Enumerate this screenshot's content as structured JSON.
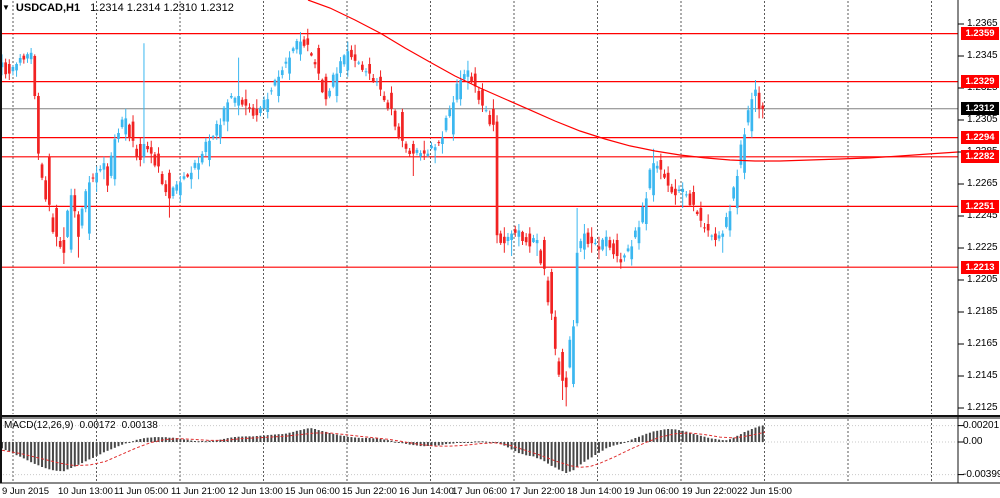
{
  "header": {
    "symbol_period": "USDCAD,H1",
    "ohlc_values": "1.2314 1.2314 1.2310 1.2312",
    "collapse_arrow": "▼"
  },
  "macd_panel": {
    "indicator_name": "MACD(12,26,9)",
    "main_value": "0.00172",
    "signal_value": "0.00138",
    "axis_labels": [
      "0.00201",
      "0.00",
      "-0.00399"
    ],
    "axis_values": [
      0.00201,
      0.0,
      -0.00399
    ]
  },
  "colors": {
    "bull": "#3BB7F0",
    "bear": "#F12222",
    "hline": "#FF0000",
    "hline_label_bg": "#FF0000",
    "current_label_bg": "#000000",
    "label_text": "#FFFFFF",
    "ma_line": "#FF0000",
    "grid": "#5A5A5A",
    "bid_line": "#808080",
    "macd_hist": "#474747",
    "macd_signal": "#E03030",
    "frame": "#111111"
  },
  "chart_data": {
    "type": "candlestick",
    "title": "USDCAD,H1",
    "price_axis_ticks": [
      1.2365,
      1.2345,
      1.2325,
      1.2305,
      1.2285,
      1.2265,
      1.2245,
      1.2225,
      1.2205,
      1.2185,
      1.2165,
      1.2145,
      1.2125
    ],
    "hlines": [
      {
        "price": 1.2359,
        "label": "1.2359"
      },
      {
        "price": 1.2329,
        "label": "1.2329"
      },
      {
        "price": 1.2294,
        "label": "1.2294"
      },
      {
        "price": 1.2282,
        "label": "1.2282"
      },
      {
        "price": 1.2251,
        "label": "1.2251"
      },
      {
        "price": 1.2213,
        "label": "1.2213"
      }
    ],
    "current_price": {
      "price": 1.2312,
      "label": "1.2312"
    },
    "time_labels": [
      "9 Jun 2015",
      "10 Jun 13:00",
      "11 Jun 05:00",
      "11 Jun 21:00",
      "12 Jun 13:00",
      "15 Jun 06:00",
      "15 Jun 22:00",
      "16 Jun 14:00",
      "17 Jun 06:00",
      "17 Jun 22:00",
      "18 Jun 14:00",
      "19 Jun 06:00",
      "19 Jun 22:00",
      "22 Jun 15:00"
    ],
    "candle_waypoints": [
      [
        2,
        1.2338,
        1.2346,
        1.2333,
        1.2341
      ],
      [
        10,
        1.234,
        1.2343,
        1.233,
        1.2334
      ],
      [
        18,
        1.2336,
        1.2341,
        1.2332,
        1.234
      ],
      [
        30,
        1.2343,
        1.235,
        1.234,
        1.2347
      ],
      [
        36,
        1.2345,
        1.2346,
        1.2318,
        1.232
      ],
      [
        40,
        1.232,
        1.2322,
        1.228,
        1.2284
      ],
      [
        48,
        1.2282,
        1.2284,
        1.2248,
        1.2252
      ],
      [
        56,
        1.225,
        1.2252,
        1.2226,
        1.2232
      ],
      [
        64,
        1.223,
        1.2238,
        1.2215,
        1.2222
      ],
      [
        70,
        1.2224,
        1.2262,
        1.2222,
        1.2258
      ],
      [
        74,
        1.2258,
        1.2262,
        1.2244,
        1.2248
      ],
      [
        80,
        1.2246,
        1.2248,
        1.2219,
        1.2232
      ],
      [
        88,
        1.2234,
        1.227,
        1.223,
        1.2266
      ],
      [
        96,
        1.2266,
        1.2276,
        1.226,
        1.2272
      ],
      [
        104,
        1.2274,
        1.2282,
        1.2268,
        1.2278
      ],
      [
        108,
        1.2276,
        1.2278,
        1.226,
        1.2264
      ],
      [
        116,
        1.2268,
        1.2296,
        1.2264,
        1.2293
      ],
      [
        124,
        1.2296,
        1.2312,
        1.2292,
        1.2306
      ],
      [
        132,
        1.2304,
        1.2308,
        1.2288,
        1.2292
      ],
      [
        140,
        1.229,
        1.2294,
        1.2276,
        1.228
      ],
      [
        143,
        1.2282,
        1.2353,
        1.2278,
        1.229
      ],
      [
        150,
        1.2288,
        1.2292,
        1.2278,
        1.2284
      ],
      [
        160,
        1.2284,
        1.2288,
        1.2272,
        1.2276
      ],
      [
        170,
        1.2272,
        1.2274,
        1.2244,
        1.2256
      ],
      [
        180,
        1.2258,
        1.227,
        1.2254,
        1.2266
      ],
      [
        190,
        1.2268,
        1.2276,
        1.2262,
        1.2272
      ],
      [
        200,
        1.2274,
        1.2282,
        1.2268,
        1.2278
      ],
      [
        210,
        1.228,
        1.2296,
        1.2276,
        1.2292
      ],
      [
        220,
        1.2294,
        1.2306,
        1.229,
        1.2302
      ],
      [
        228,
        1.2304,
        1.2318,
        1.2298,
        1.2316
      ],
      [
        237,
        1.2314,
        1.2344,
        1.2308,
        1.232
      ],
      [
        246,
        1.2318,
        1.2324,
        1.2308,
        1.2314
      ],
      [
        256,
        1.2312,
        1.2318,
        1.2304,
        1.2308
      ],
      [
        266,
        1.231,
        1.2322,
        1.2306,
        1.2318
      ],
      [
        278,
        1.232,
        1.2336,
        1.2316,
        1.2332
      ],
      [
        290,
        1.2334,
        1.2348,
        1.233,
        1.2344
      ],
      [
        300,
        1.2346,
        1.236,
        1.2342,
        1.2354
      ],
      [
        308,
        1.2356,
        1.2362,
        1.2348,
        1.2352
      ],
      [
        318,
        1.235,
        1.2352,
        1.233,
        1.2334
      ],
      [
        326,
        1.2332,
        1.2334,
        1.2314,
        1.2318
      ],
      [
        336,
        1.232,
        1.2338,
        1.2316,
        1.2334
      ],
      [
        346,
        1.2336,
        1.2354,
        1.2332,
        1.2348
      ],
      [
        356,
        1.2346,
        1.2352,
        1.2338,
        1.2342
      ],
      [
        368,
        1.234,
        1.2344,
        1.233,
        1.2334
      ],
      [
        380,
        1.2332,
        1.2336,
        1.232,
        1.2324
      ],
      [
        392,
        1.2322,
        1.2326,
        1.2308,
        1.2312
      ],
      [
        404,
        1.231,
        1.2312,
        1.2288,
        1.2292
      ],
      [
        414,
        1.229,
        1.2292,
        1.227,
        1.2284
      ],
      [
        424,
        1.2286,
        1.2292,
        1.228,
        1.2284
      ],
      [
        434,
        1.2286,
        1.229,
        1.2278,
        1.2288
      ],
      [
        444,
        1.229,
        1.2298,
        1.2284,
        1.2294
      ],
      [
        452,
        1.2296,
        1.232,
        1.2292,
        1.2316
      ],
      [
        460,
        1.2318,
        1.2336,
        1.2314,
        1.233
      ],
      [
        468,
        1.2332,
        1.2342,
        1.2324,
        1.2336
      ],
      [
        476,
        1.2334,
        1.2338,
        1.2322,
        1.2326
      ],
      [
        484,
        1.2324,
        1.2328,
        1.231,
        1.2314
      ],
      [
        492,
        1.2312,
        1.2318,
        1.2298,
        1.2302
      ],
      [
        497,
        1.2304,
        1.2308,
        1.2228,
        1.2233
      ],
      [
        504,
        1.2232,
        1.2238,
        1.2222,
        1.2228
      ],
      [
        512,
        1.223,
        1.2236,
        1.222,
        1.2234
      ],
      [
        520,
        1.2232,
        1.224,
        1.2226,
        1.2236
      ],
      [
        528,
        1.2234,
        1.2238,
        1.2222,
        1.2226
      ],
      [
        536,
        1.2228,
        1.2234,
        1.222,
        1.223
      ],
      [
        544,
        1.223,
        1.2232,
        1.2208,
        1.2212
      ],
      [
        550,
        1.221,
        1.2212,
        1.218,
        1.2184
      ],
      [
        556,
        1.2182,
        1.2186,
        1.2158,
        1.2162
      ],
      [
        562,
        1.216,
        1.2162,
        1.213,
        1.2142
      ],
      [
        566,
        1.2144,
        1.2148,
        1.2126,
        1.2138
      ],
      [
        572,
        1.214,
        1.218,
        1.2138,
        1.2176
      ],
      [
        577,
        1.2178,
        1.225,
        1.2176,
        1.2222
      ],
      [
        584,
        1.2224,
        1.224,
        1.2218,
        1.2234
      ],
      [
        592,
        1.2232,
        1.2238,
        1.2222,
        1.2228
      ],
      [
        600,
        1.2226,
        1.2232,
        1.2218,
        1.2224
      ],
      [
        608,
        1.2226,
        1.2236,
        1.222,
        1.2232
      ],
      [
        616,
        1.223,
        1.2234,
        1.2216,
        1.222
      ],
      [
        622,
        1.2218,
        1.2222,
        1.2212,
        1.2216
      ],
      [
        630,
        1.2218,
        1.223,
        1.2214,
        1.2226
      ],
      [
        638,
        1.2228,
        1.2242,
        1.2224,
        1.2238
      ],
      [
        646,
        1.224,
        1.226,
        1.2236,
        1.2256
      ],
      [
        654,
        1.2258,
        1.2287,
        1.2254,
        1.2278
      ],
      [
        660,
        1.228,
        1.2284,
        1.2268,
        1.2274
      ],
      [
        668,
        1.2272,
        1.2276,
        1.226,
        1.2264
      ],
      [
        676,
        1.2262,
        1.2268,
        1.2252,
        1.2258
      ],
      [
        684,
        1.226,
        1.2266,
        1.225,
        1.2262
      ],
      [
        692,
        1.226,
        1.2264,
        1.2248,
        1.2252
      ],
      [
        700,
        1.225,
        1.2254,
        1.2238,
        1.2242
      ],
      [
        708,
        1.224,
        1.2246,
        1.2232,
        1.2236
      ],
      [
        716,
        1.2234,
        1.2238,
        1.2226,
        1.223
      ],
      [
        722,
        1.2232,
        1.2236,
        1.2222,
        1.2234
      ],
      [
        730,
        1.2236,
        1.2252,
        1.2232,
        1.2248
      ],
      [
        738,
        1.225,
        1.2274,
        1.2246,
        1.227
      ],
      [
        746,
        1.2272,
        1.23,
        1.2268,
        1.2296
      ],
      [
        752,
        1.2298,
        1.2322,
        1.2294,
        1.2318
      ],
      [
        757,
        1.232,
        1.233,
        1.231,
        1.2324
      ],
      [
        760.5,
        1.2322,
        1.2326,
        1.2306,
        1.2312
      ],
      [
        764,
        1.2314,
        1.2316,
        1.2306,
        1.2312
      ]
    ],
    "ma_line": [
      [
        308,
        1.238
      ],
      [
        330,
        1.2375
      ],
      [
        355,
        1.23675
      ],
      [
        380,
        1.23594
      ],
      [
        405,
        1.235
      ],
      [
        430,
        1.23412
      ],
      [
        455,
        1.23325
      ],
      [
        480,
        1.2325
      ],
      [
        505,
        1.23181
      ],
      [
        530,
        1.23113
      ],
      [
        555,
        1.23044
      ],
      [
        580,
        1.22981
      ],
      [
        605,
        1.22931
      ],
      [
        630,
        1.22888
      ],
      [
        655,
        1.22856
      ],
      [
        680,
        1.22831
      ],
      [
        705,
        1.22813
      ],
      [
        730,
        1.228
      ],
      [
        755,
        1.22794
      ],
      [
        780,
        1.22794
      ],
      [
        810,
        1.228
      ],
      [
        840,
        1.22806
      ],
      [
        870,
        1.22813
      ],
      [
        900,
        1.22825
      ],
      [
        930,
        1.22838
      ],
      [
        958,
        1.2285
      ]
    ],
    "macd_histogram_waypoints": [
      [
        2,
        -0.0008
      ],
      [
        10,
        -0.0012
      ],
      [
        20,
        -0.0018
      ],
      [
        33,
        -0.0026
      ],
      [
        45,
        -0.0032
      ],
      [
        55,
        -0.0035
      ],
      [
        63,
        -0.0036
      ],
      [
        75,
        -0.003
      ],
      [
        85,
        -0.0024
      ],
      [
        95,
        -0.0018
      ],
      [
        105,
        -0.0012
      ],
      [
        115,
        -0.0007
      ],
      [
        125,
        -0.0002
      ],
      [
        135,
        0.0002
      ],
      [
        145,
        0.0005
      ],
      [
        155,
        0.0006
      ],
      [
        165,
        0.0006
      ],
      [
        175,
        0.0005
      ],
      [
        185,
        0.0003
      ],
      [
        195,
        0.0001
      ],
      [
        205,
        0.0001
      ],
      [
        215,
        0.0002
      ],
      [
        225,
        0.0004
      ],
      [
        235,
        0.0006
      ],
      [
        245,
        0.0007
      ],
      [
        255,
        0.0007
      ],
      [
        265,
        0.0008
      ],
      [
        275,
        0.0009
      ],
      [
        285,
        0.001
      ],
      [
        295,
        0.0013
      ],
      [
        305,
        0.0016
      ],
      [
        312,
        0.0017
      ],
      [
        320,
        0.0014
      ],
      [
        330,
        0.0011
      ],
      [
        340,
        0.0008
      ],
      [
        350,
        0.0006
      ],
      [
        360,
        0.0005
      ],
      [
        370,
        0.0005
      ],
      [
        380,
        0.0004
      ],
      [
        390,
        0.0002
      ],
      [
        400,
        -0.0001
      ],
      [
        410,
        -0.0003
      ],
      [
        420,
        -0.0005
      ],
      [
        430,
        -0.0005
      ],
      [
        440,
        -0.0004
      ],
      [
        450,
        -0.0002
      ],
      [
        460,
        -0.0001
      ],
      [
        470,
        0.0
      ],
      [
        480,
        0.0001
      ],
      [
        490,
        0.0
      ],
      [
        500,
        -0.0002
      ],
      [
        510,
        -0.0008
      ],
      [
        518,
        -0.0013
      ],
      [
        526,
        -0.0016
      ],
      [
        534,
        -0.0018
      ],
      [
        542,
        -0.0022
      ],
      [
        550,
        -0.0028
      ],
      [
        558,
        -0.0033
      ],
      [
        566,
        -0.0038
      ],
      [
        574,
        -0.0034
      ],
      [
        582,
        -0.0026
      ],
      [
        590,
        -0.002
      ],
      [
        598,
        -0.0014
      ],
      [
        606,
        -0.0008
      ],
      [
        614,
        -0.0004
      ],
      [
        622,
        -0.0002
      ],
      [
        630,
        0.0002
      ],
      [
        638,
        0.0006
      ],
      [
        646,
        0.001
      ],
      [
        654,
        0.0013
      ],
      [
        662,
        0.0015
      ],
      [
        670,
        0.0016
      ],
      [
        678,
        0.0015
      ],
      [
        686,
        0.0013
      ],
      [
        694,
        0.001
      ],
      [
        702,
        0.0007
      ],
      [
        710,
        0.0005
      ],
      [
        718,
        0.0003
      ],
      [
        726,
        0.0002
      ],
      [
        732,
        0.0004
      ],
      [
        738,
        0.0008
      ],
      [
        744,
        0.0012
      ],
      [
        750,
        0.0015
      ],
      [
        756,
        0.0018
      ],
      [
        761,
        0.002
      ],
      [
        764,
        0.002
      ]
    ],
    "macd_signal_waypoints": [
      [
        2,
        -0.001
      ],
      [
        20,
        -0.0014
      ],
      [
        40,
        -0.002
      ],
      [
        60,
        -0.0026
      ],
      [
        75,
        -0.0029
      ],
      [
        90,
        -0.0028
      ],
      [
        105,
        -0.0024
      ],
      [
        120,
        -0.0016
      ],
      [
        135,
        -0.0008
      ],
      [
        150,
        -0.0001
      ],
      [
        165,
        0.0003
      ],
      [
        180,
        0.0004
      ],
      [
        195,
        0.0003
      ],
      [
        210,
        0.0002
      ],
      [
        225,
        0.0002
      ],
      [
        240,
        0.0004
      ],
      [
        255,
        0.0005
      ],
      [
        270,
        0.0006
      ],
      [
        285,
        0.0007
      ],
      [
        300,
        0.0009
      ],
      [
        315,
        0.0011
      ],
      [
        330,
        0.0011
      ],
      [
        345,
        0.0009
      ],
      [
        360,
        0.0007
      ],
      [
        375,
        0.0005
      ],
      [
        390,
        0.0003
      ],
      [
        405,
        0.0
      ],
      [
        420,
        -0.0003
      ],
      [
        435,
        -0.0005
      ],
      [
        450,
        -0.0005
      ],
      [
        465,
        -0.0004
      ],
      [
        480,
        -0.0002
      ],
      [
        495,
        -0.0001
      ],
      [
        510,
        -0.0004
      ],
      [
        525,
        -0.001
      ],
      [
        540,
        -0.0016
      ],
      [
        555,
        -0.0023
      ],
      [
        570,
        -0.0029
      ],
      [
        580,
        -0.0031
      ],
      [
        590,
        -0.003
      ],
      [
        600,
        -0.0026
      ],
      [
        615,
        -0.0018
      ],
      [
        630,
        -0.0009
      ],
      [
        645,
        -0.0001
      ],
      [
        660,
        0.0006
      ],
      [
        675,
        0.001
      ],
      [
        690,
        0.0011
      ],
      [
        705,
        0.0009
      ],
      [
        720,
        0.0006
      ],
      [
        735,
        0.0005
      ],
      [
        750,
        0.0008
      ],
      [
        765,
        0.0012
      ]
    ]
  }
}
